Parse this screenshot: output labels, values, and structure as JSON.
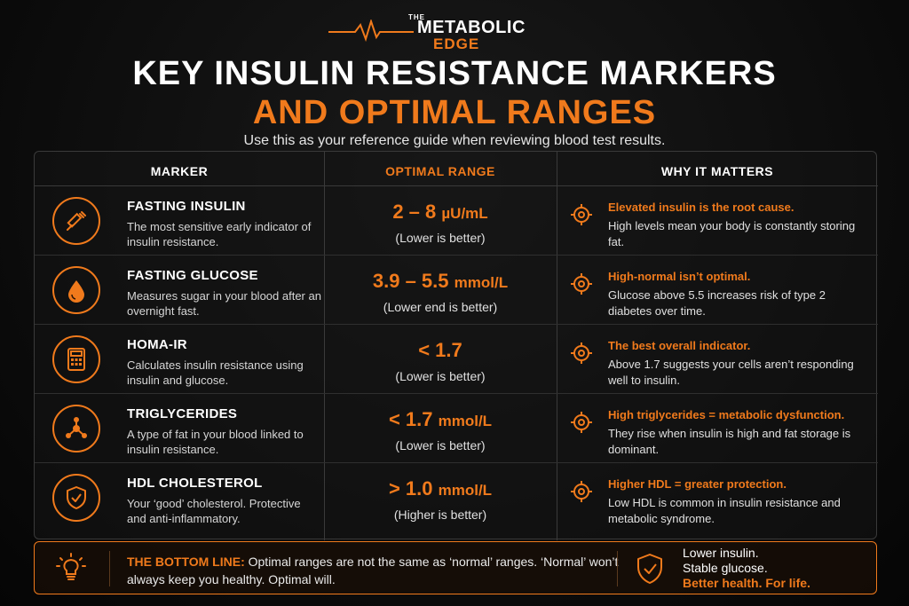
{
  "logo": {
    "the": "THE",
    "metabolic": "METABOLIC",
    "edge": "EDGE"
  },
  "title": {
    "line1": "KEY INSULIN RESISTANCE MARKERS",
    "line2": "AND OPTIMAL RANGES"
  },
  "subtitle": "Use this as your reference guide when reviewing blood test results.",
  "headers": {
    "marker": "MARKER",
    "range": "OPTIMAL RANGE",
    "why": "WHY IT MATTERS"
  },
  "rows": [
    {
      "icon": "syringe-icon",
      "name": "FASTING INSULIN",
      "desc": "The most sensitive early indicator of insulin resistance.",
      "value": "2 – 8",
      "unit": "µU/mL",
      "note": "(Lower is better)",
      "why_head": "Elevated insulin is the root cause.",
      "why_desc": "High levels mean your body is constantly storing fat."
    },
    {
      "icon": "blood-drop-icon",
      "name": "FASTING GLUCOSE",
      "desc": "Measures sugar in your blood after an overnight fast.",
      "value": "3.9 – 5.5",
      "unit": "mmol/L",
      "note": "(Lower end is better)",
      "why_head": "High-normal isn’t optimal.",
      "why_desc": "Glucose above 5.5 increases risk of type 2 diabetes over time."
    },
    {
      "icon": "calculator-icon",
      "name": "HOMA-IR",
      "desc": "Calculates insulin resistance using insulin and glucose.",
      "value": "< 1.7",
      "unit": "",
      "note": "(Lower is better)",
      "why_head": "The best overall indicator.",
      "why_desc": "Above 1.7 suggests your cells aren’t responding well to insulin."
    },
    {
      "icon": "molecule-icon",
      "name": "TRIGLYCERIDES",
      "desc": "A type of fat in your blood linked to insulin resistance.",
      "value": "< 1.7",
      "unit": "mmol/L",
      "note": "(Lower is better)",
      "why_head": "High triglycerides = metabolic dysfunction.",
      "why_desc": "They rise when insulin is high and fat storage is dominant."
    },
    {
      "icon": "shield-check-icon",
      "name": "HDL CHOLESTEROL",
      "desc": "Your ‘good’ cholesterol. Protective and anti-inflammatory.",
      "value": "> 1.0",
      "unit": "mmol/L",
      "note": "(Higher is better)",
      "why_head": "Higher HDL = greater protection.",
      "why_desc": "Low HDL is common in insulin resistance and metabolic syndrome."
    }
  ],
  "bottom": {
    "lead": "THE BOTTOM LINE:",
    "text": " Optimal ranges are not the same as ‘normal’ ranges. ‘Normal’ won’t always keep you healthy. Optimal will.",
    "line1": "Lower insulin.",
    "line2": "Stable glucose.",
    "line3": "Better health. For life."
  },
  "colors": {
    "accent": "#f07a1c",
    "background": "#0b0b0b"
  }
}
